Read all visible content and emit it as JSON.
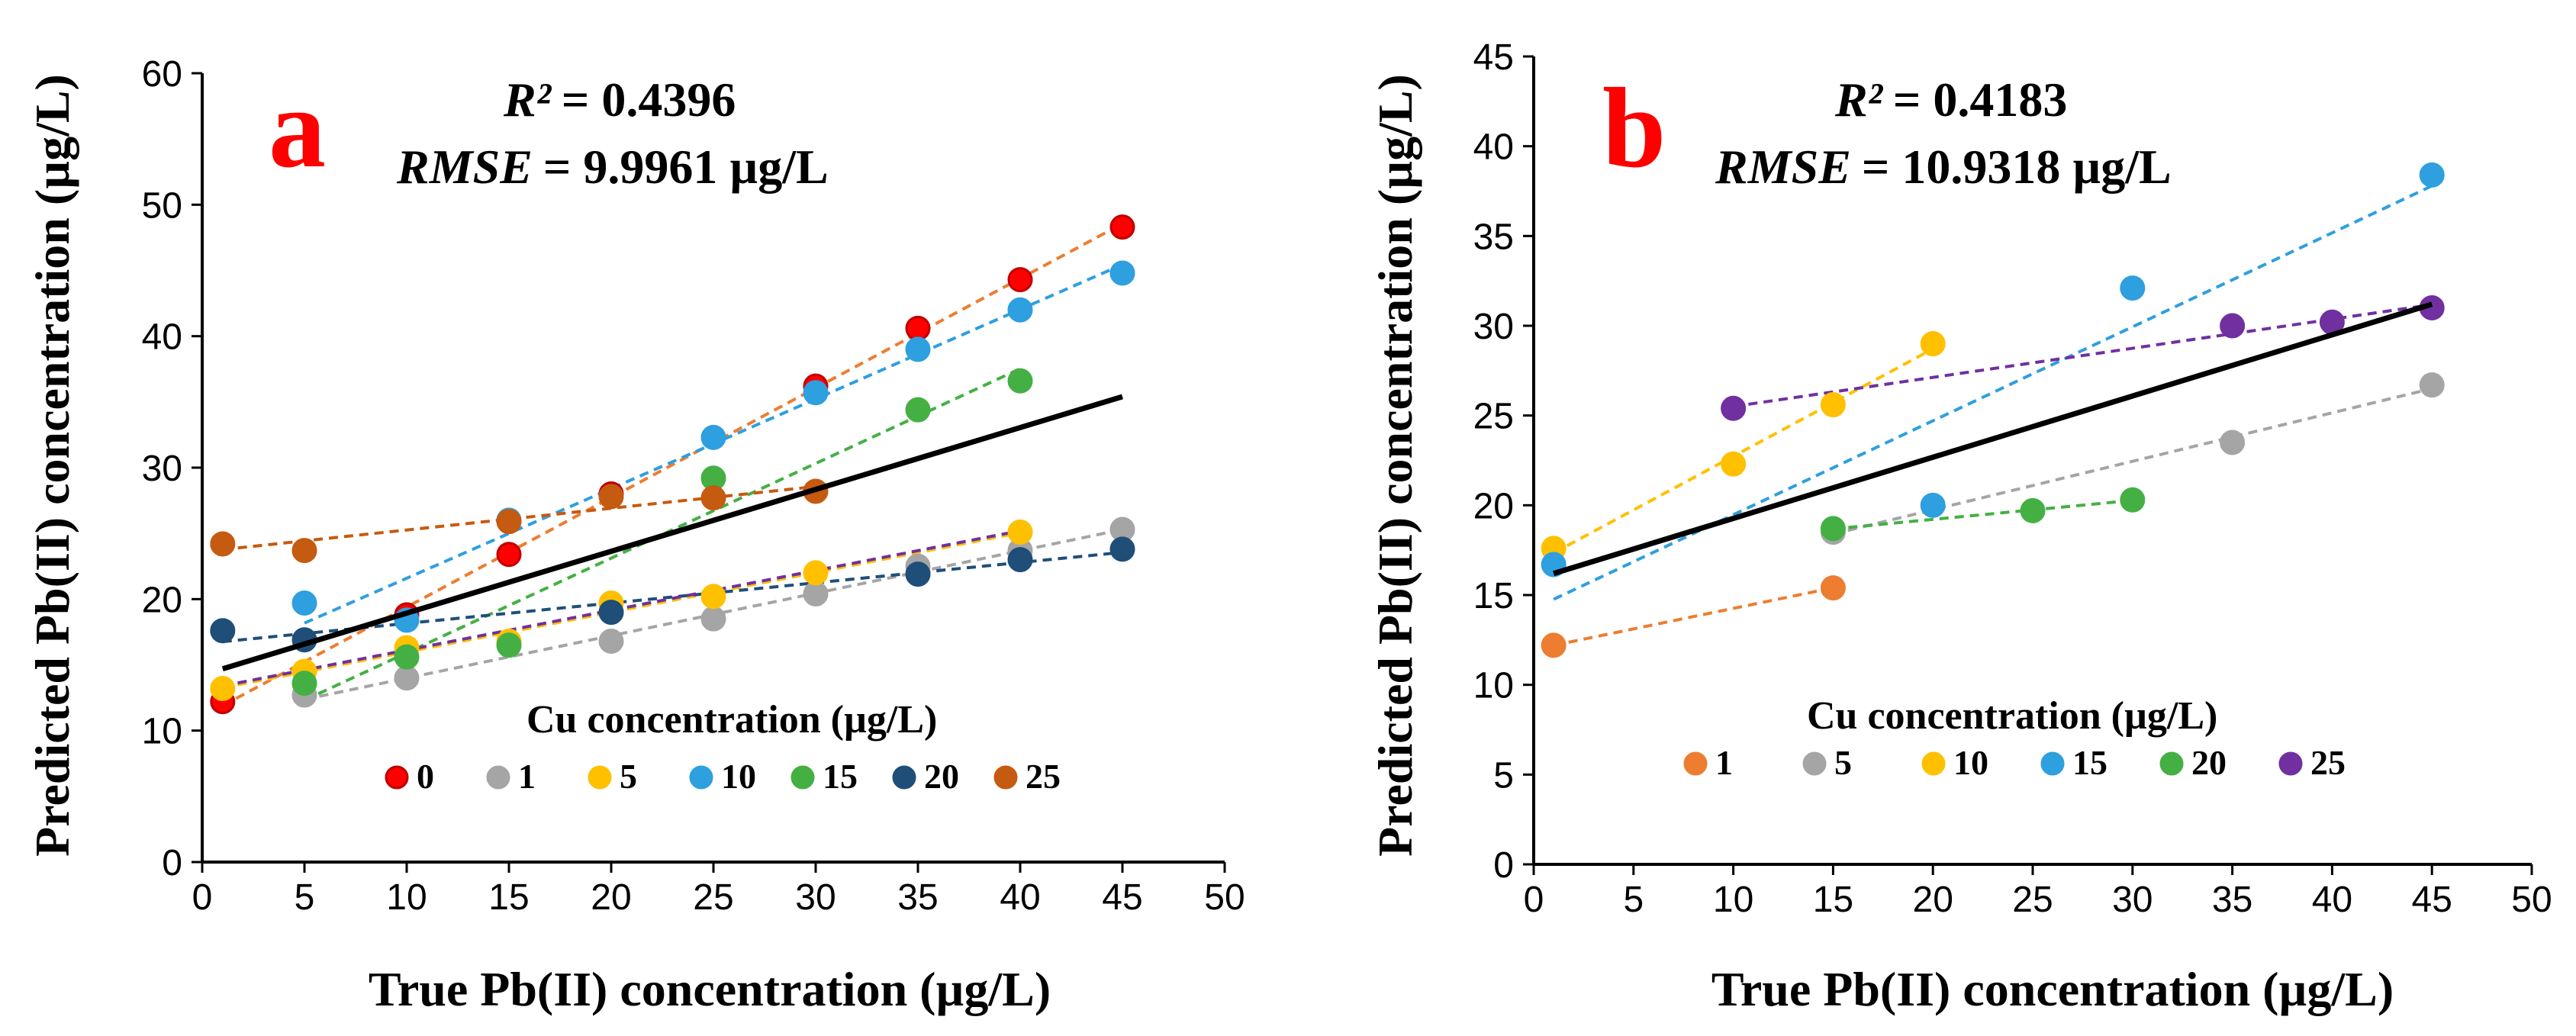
{
  "chart_data": [
    {
      "type": "scatter",
      "panel_letter": "a",
      "stats": {
        "r2_label": "R²",
        "r2_value": "= 0.4396",
        "rmse_label": "RMSE",
        "rmse_value": "= 9.9961 µg/L"
      },
      "xlabel": "True Pb(II) concentration (µg/L)",
      "ylabel": "Predicted Pb(II) concentration (µg/L)",
      "xlim": [
        0,
        50
      ],
      "ylim": [
        0,
        60
      ],
      "xticks": [
        0,
        5,
        10,
        15,
        20,
        25,
        30,
        35,
        40,
        45,
        50
      ],
      "yticks": [
        0,
        10,
        20,
        30,
        40,
        50,
        60
      ],
      "legend_title": "Cu concentration (µg/L)",
      "fit_line": {
        "color": "#000000",
        "x": [
          1,
          45
        ],
        "y": [
          14.7,
          35.4
        ]
      },
      "series": [
        {
          "name": "0",
          "color": "#ff0000",
          "edge": "#c00000",
          "trend_color": "#ed7d31",
          "x": [
            1,
            10,
            15,
            20,
            30,
            35,
            40,
            45
          ],
          "y": [
            12.2,
            18.8,
            23.4,
            28.0,
            36.2,
            40.6,
            44.3,
            48.3
          ]
        },
        {
          "name": "1",
          "color": "#a5a5a5",
          "edge": "#a5a5a5",
          "trend_color": "#a5a5a5",
          "x": [
            5,
            10,
            20,
            25,
            30,
            35,
            40,
            45
          ],
          "y": [
            12.7,
            14.0,
            16.8,
            18.5,
            20.4,
            22.5,
            23.7,
            25.3
          ]
        },
        {
          "name": "5",
          "color": "#ffc000",
          "edge": "#ffc000",
          "trend_color": "#ffc000",
          "x": [
            1,
            5,
            10,
            15,
            20,
            25,
            30,
            40
          ],
          "y": [
            13.2,
            14.5,
            16.3,
            16.8,
            19.7,
            20.2,
            22.0,
            25.1
          ]
        },
        {
          "name": "10",
          "color": "#2e9fdf",
          "edge": "#2e9fdf",
          "trend_color": "#2e9fdf",
          "x": [
            5,
            10,
            15,
            25,
            30,
            35,
            40,
            45
          ],
          "y": [
            19.7,
            18.4,
            26.0,
            32.3,
            35.7,
            39.0,
            42.0,
            44.8
          ]
        },
        {
          "name": "15",
          "color": "#44b044",
          "edge": "#44b044",
          "trend_color": "#44b044",
          "x": [
            5,
            10,
            15,
            25,
            35,
            40
          ],
          "y": [
            13.6,
            15.6,
            16.5,
            29.2,
            34.4,
            36.6
          ]
        },
        {
          "name": "20",
          "color": "#1f4e79",
          "edge": "#1f4e79",
          "trend_color": "#1f4e79",
          "x": [
            1,
            5,
            20,
            35,
            40,
            45
          ],
          "y": [
            17.6,
            16.9,
            19.0,
            21.9,
            23.0,
            23.8
          ]
        },
        {
          "name": "25",
          "color": "#c55a11",
          "edge": "#c55a11",
          "trend_color": "#c55a11",
          "x": [
            1,
            5,
            15,
            20,
            25,
            30
          ],
          "y": [
            24.2,
            23.7,
            25.9,
            27.8,
            27.7,
            28.2
          ]
        }
      ],
      "purple_trend": {
        "color": "#7030a0",
        "x": [
          1,
          40
        ],
        "y": [
          13.4,
          25.2
        ]
      }
    },
    {
      "type": "scatter",
      "panel_letter": "b",
      "stats": {
        "r2_label": "R²",
        "r2_value": "= 0.4183",
        "rmse_label": "RMSE",
        "rmse_value": "= 10.9318 µg/L"
      },
      "xlabel": "True Pb(II) concentration (µg/L)",
      "ylabel": "Predicted Pb(II) concentration (µg/L)",
      "xlim": [
        0,
        50
      ],
      "ylim": [
        0,
        45
      ],
      "xticks": [
        0,
        5,
        10,
        15,
        20,
        25,
        30,
        35,
        40,
        45,
        50
      ],
      "yticks": [
        0,
        5,
        10,
        15,
        20,
        25,
        30,
        35,
        40,
        45
      ],
      "legend_title": "Cu concentration (µg/L)",
      "fit_line": {
        "color": "#000000",
        "x": [
          1,
          45
        ],
        "y": [
          16.2,
          31.2
        ]
      },
      "series": [
        {
          "name": "1",
          "color": "#ed7d31",
          "edge": "#ed7d31",
          "trend_color": "#ed7d31",
          "x": [
            1,
            15
          ],
          "y": [
            12.2,
            15.4
          ]
        },
        {
          "name": "5",
          "color": "#a5a5a5",
          "edge": "#a5a5a5",
          "trend_color": "#a5a5a5",
          "x": [
            15,
            35,
            45
          ],
          "y": [
            18.5,
            23.5,
            26.7
          ]
        },
        {
          "name": "10",
          "color": "#ffc000",
          "edge": "#ffc000",
          "trend_color": "#ffc000",
          "x": [
            1,
            10,
            15,
            20
          ],
          "y": [
            17.6,
            22.3,
            25.6,
            29.0
          ]
        },
        {
          "name": "15",
          "color": "#2e9fdf",
          "edge": "#2e9fdf",
          "trend_color": "#2e9fdf",
          "x": [
            1,
            20,
            30,
            45
          ],
          "y": [
            16.7,
            20.0,
            32.1,
            38.4
          ]
        },
        {
          "name": "20",
          "color": "#44b044",
          "edge": "#44b044",
          "trend_color": "#44b044",
          "x": [
            15,
            25,
            30
          ],
          "y": [
            18.7,
            19.7,
            20.3
          ]
        },
        {
          "name": "25",
          "color": "#7030a0",
          "edge": "#7030a0",
          "trend_color": "#7030a0",
          "x": [
            10,
            35,
            40,
            45
          ],
          "y": [
            25.4,
            30.0,
            30.2,
            31.0
          ]
        }
      ]
    }
  ]
}
